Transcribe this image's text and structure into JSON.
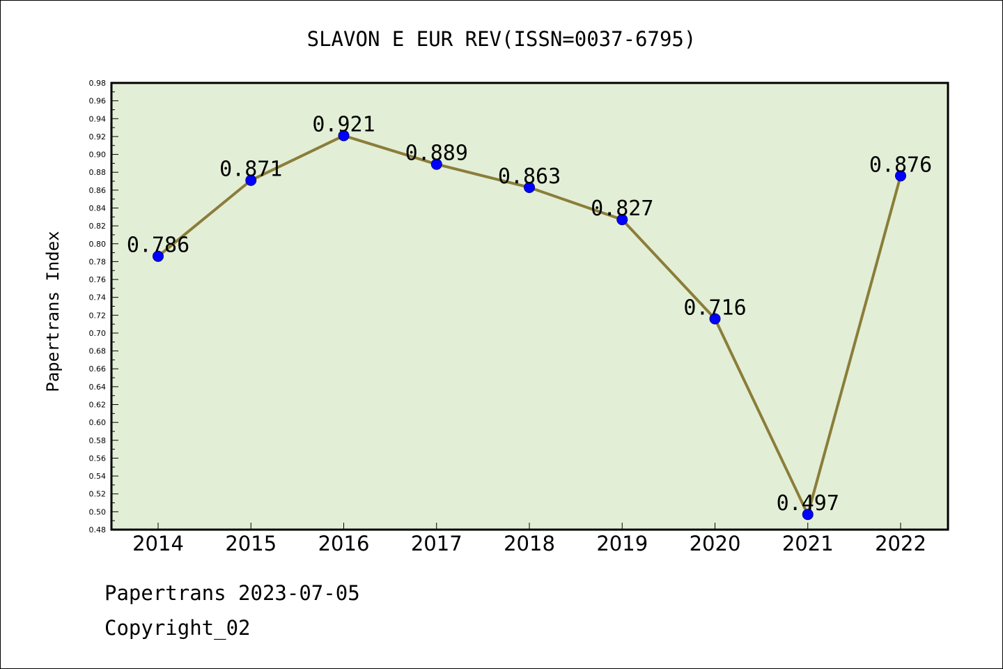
{
  "chart_data": {
    "type": "line",
    "title": "SLAVON E EUR REV(ISSN=0037-6795)",
    "ylabel": "Papertrans Index",
    "xlabel": "",
    "categories": [
      "2014",
      "2015",
      "2016",
      "2017",
      "2018",
      "2019",
      "2020",
      "2021",
      "2022"
    ],
    "series": [
      {
        "values": [
          0.786,
          0.871,
          0.921,
          0.889,
          0.863,
          0.827,
          0.716,
          0.497,
          0.876
        ],
        "line_color": "#8b7d3a",
        "marker_color": "#0000ff"
      }
    ],
    "data_labels": [
      "0.786",
      "0.871",
      "0.921",
      "0.889",
      "0.863",
      "0.827",
      "0.716",
      "0.497",
      "0.876"
    ],
    "ylim": [
      0.48,
      0.98
    ],
    "ytick_labels": [
      "0.48",
      "0.50",
      "0.52",
      "0.54",
      "0.56",
      "0.58",
      "0.60",
      "0.62",
      "0.64",
      "0.66",
      "0.68",
      "0.70",
      "0.72",
      "0.74",
      "0.76",
      "0.78",
      "0.80",
      "0.82",
      "0.84",
      "0.86",
      "0.88",
      "0.90",
      "0.92",
      "0.94",
      "0.96",
      "0.98"
    ],
    "grid": false,
    "legend": "none",
    "plot_background": "#e2efd6"
  },
  "footer": {
    "line1": "Papertrans 2023-07-05",
    "line2": "Copyright_02"
  }
}
